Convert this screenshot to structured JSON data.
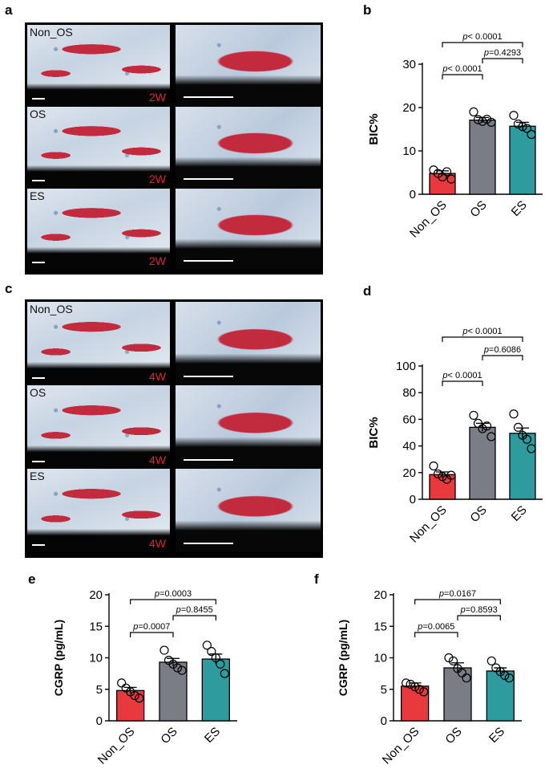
{
  "panel_labels": [
    "a",
    "b",
    "c",
    "d",
    "e",
    "f"
  ],
  "histology": [
    {
      "panel": "a",
      "rows": [
        {
          "group": "Non_OS",
          "week": "2W"
        },
        {
          "group": "OS",
          "week": "2W"
        },
        {
          "group": "ES",
          "week": "2W"
        }
      ]
    },
    {
      "panel": "c",
      "rows": [
        {
          "group": "Non_OS",
          "week": "4W"
        },
        {
          "group": "OS",
          "week": "4W"
        },
        {
          "group": "ES",
          "week": "4W"
        }
      ]
    }
  ],
  "colors": {
    "Non_OS": "#e8393f",
    "OS": "#7a7d85",
    "ES": "#2e9c9f",
    "bone_red": "#c22a3e",
    "tissue_blue": "#4a6fa5"
  },
  "chart_data": [
    {
      "panel": "b",
      "type": "bar",
      "categories": [
        "Non_OS",
        "OS",
        "ES"
      ],
      "values": [
        4.8,
        17.1,
        15.7
      ],
      "errors": [
        0.6,
        0.6,
        0.9
      ],
      "points": [
        [
          5.6,
          4.8,
          4.0,
          5.2,
          3.5
        ],
        [
          19.0,
          17.2,
          16.8,
          17.3,
          16.6
        ],
        [
          18.2,
          16.2,
          15.6,
          15.2,
          13.8
        ]
      ],
      "xlabel": "",
      "ylabel": "BIC%",
      "ylim": [
        0,
        30
      ],
      "yticks": [
        0,
        10,
        20,
        30
      ],
      "comparisons": [
        {
          "from": 0,
          "to": 2,
          "label_prefix": "p",
          "label_value": "< 0.0001"
        },
        {
          "from": 0,
          "to": 1,
          "label_prefix": "p",
          "label_value": "< 0.0001"
        },
        {
          "from": 1,
          "to": 2,
          "label_prefix": "p",
          "label_value": "=0.4293"
        }
      ]
    },
    {
      "panel": "d",
      "type": "bar",
      "categories": [
        "Non_OS",
        "OS",
        "ES"
      ],
      "values": [
        18.5,
        54.0,
        49.5
      ],
      "errors": [
        2.0,
        3.0,
        4.0
      ],
      "points": [
        [
          25.0,
          19.0,
          17.0,
          15.0,
          18.0
        ],
        [
          63.0,
          57.0,
          53.0,
          55.0,
          47.0
        ],
        [
          64.0,
          54.0,
          48.0,
          45.0,
          38.0
        ]
      ],
      "xlabel": "",
      "ylabel": "BIC%",
      "ylim": [
        0,
        100
      ],
      "yticks": [
        0,
        20,
        40,
        60,
        80,
        100
      ],
      "comparisons": [
        {
          "from": 0,
          "to": 2,
          "label_prefix": "p",
          "label_value": "< 0.0001"
        },
        {
          "from": 0,
          "to": 1,
          "label_prefix": "p",
          "label_value": "< 0.0001"
        },
        {
          "from": 1,
          "to": 2,
          "label_prefix": "p",
          "label_value": "=0.6086"
        }
      ]
    },
    {
      "panel": "e",
      "type": "bar",
      "categories": [
        "Non_OS",
        "OS",
        "ES"
      ],
      "values": [
        4.8,
        9.3,
        9.8
      ],
      "errors": [
        0.5,
        0.6,
        0.8
      ],
      "points": [
        [
          6.0,
          5.2,
          4.6,
          4.0,
          3.6
        ],
        [
          11.2,
          9.6,
          9.0,
          8.4,
          8.0
        ],
        [
          12.0,
          11.0,
          10.0,
          9.0,
          7.5
        ]
      ],
      "xlabel": "",
      "ylabel": "CGRP (pg/mL)",
      "ylim": [
        0,
        20
      ],
      "yticks": [
        0,
        5,
        10,
        15,
        20
      ],
      "comparisons": [
        {
          "from": 0,
          "to": 2,
          "label_prefix": "p",
          "label_value": "=0.0003"
        },
        {
          "from": 0,
          "to": 1,
          "label_prefix": "p",
          "label_value": "=0.0007"
        },
        {
          "from": 1,
          "to": 2,
          "label_prefix": "p",
          "label_value": "=0.8455"
        }
      ]
    },
    {
      "panel": "f",
      "type": "bar",
      "categories": [
        "Non_OS",
        "OS",
        "ES"
      ],
      "values": [
        5.5,
        8.4,
        7.9
      ],
      "errors": [
        0.5,
        0.8,
        0.5
      ],
      "points": [
        [
          6.0,
          5.8,
          5.4,
          5.0,
          4.6
        ],
        [
          10.0,
          9.5,
          8.3,
          7.6,
          6.8
        ],
        [
          9.5,
          8.4,
          7.8,
          7.2,
          6.8
        ]
      ],
      "xlabel": "",
      "ylabel": "CGRP (pg/mL)",
      "ylim": [
        0,
        20
      ],
      "yticks": [
        0,
        5,
        10,
        15,
        20
      ],
      "comparisons": [
        {
          "from": 0,
          "to": 2,
          "label_prefix": "p",
          "label_value": "=0.0167"
        },
        {
          "from": 0,
          "to": 1,
          "label_prefix": "p",
          "label_value": "=0.0065"
        },
        {
          "from": 1,
          "to": 2,
          "label_prefix": "p",
          "label_value": "=0.8593"
        }
      ]
    }
  ]
}
